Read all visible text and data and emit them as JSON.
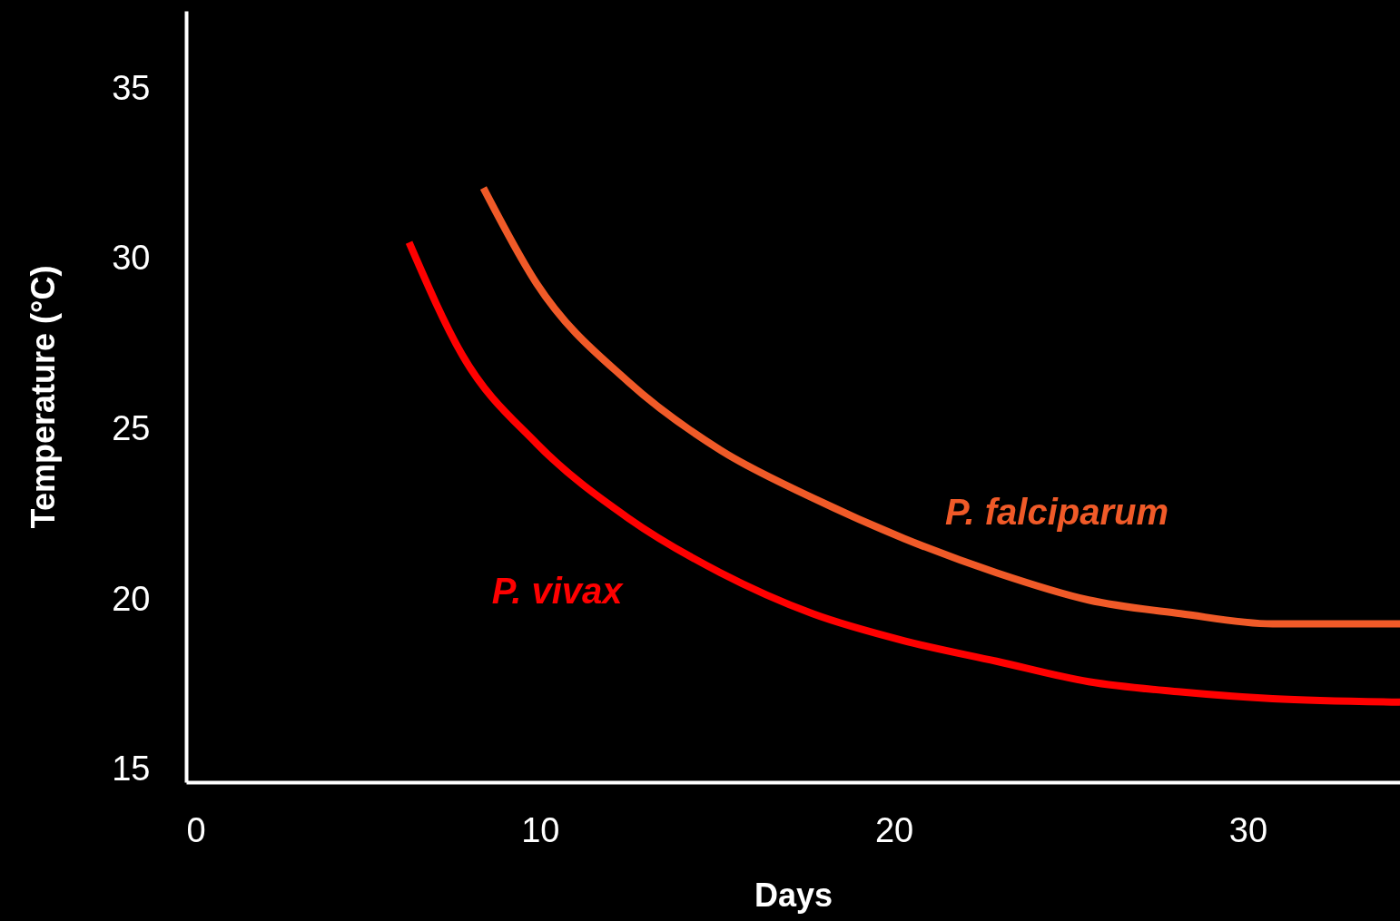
{
  "chart_data": {
    "type": "line",
    "xlabel": "Days",
    "ylabel": "Temperature (°C)",
    "xlim": [
      0,
      34.3
    ],
    "ylim": [
      14.65,
      37.3
    ],
    "xticks": [
      0,
      10,
      20,
      30
    ],
    "yticks": [
      15,
      20,
      25,
      30,
      35
    ],
    "grid": false,
    "marker": "none",
    "line_style": "solid",
    "series": [
      {
        "name": "P. vivax",
        "color": "#ff0000",
        "x": [
          6.3,
          7.8,
          9.9,
          12.5,
          15.1,
          17.7,
          20.3,
          22.9,
          25.5,
          28.1,
          30.7,
          34.3
        ],
        "values": [
          30.5,
          27.2,
          24.6,
          22.4,
          20.8,
          19.6,
          18.8,
          18.2,
          17.6,
          17.3,
          17.1,
          17.0
        ]
      },
      {
        "name": "P. falciparum",
        "color": "#f05a28",
        "x": [
          8.4,
          9.9,
          12.5,
          15.1,
          17.7,
          20.3,
          22.9,
          25.5,
          28.1,
          30.7,
          34.3
        ],
        "values": [
          32.1,
          29.3,
          26.4,
          24.4,
          23.0,
          21.8,
          20.8,
          20.0,
          19.6,
          19.3,
          19.3
        ]
      }
    ]
  }
}
